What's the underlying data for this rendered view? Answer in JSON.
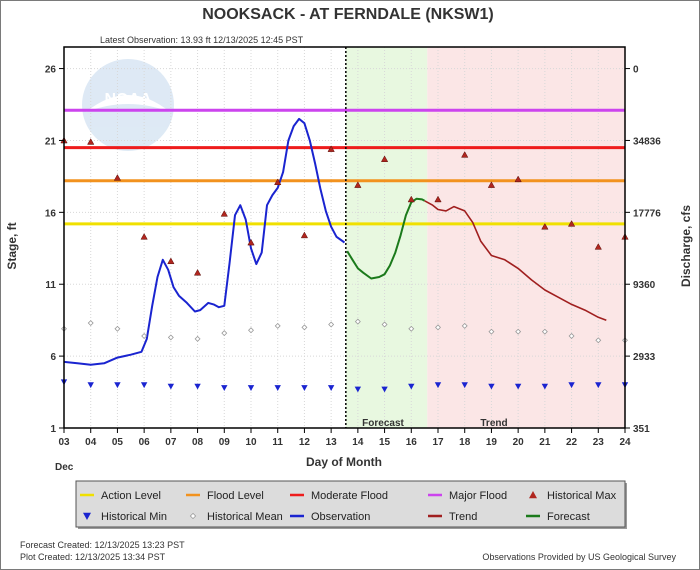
{
  "header": {
    "title": "NOOKSACK - AT FERNDALE  (NKSW1)",
    "latest_observation": "Latest Observation: 13.93 ft 12/13/2025 12:45 PST"
  },
  "watermark": "NOAA",
  "chart_data": {
    "type": "line",
    "x_label": "Day of Month",
    "x_sublabel": "Dec",
    "y_label": "Stage, ft",
    "y2_label": "Discharge, cfs",
    "x_ticks": [
      "03",
      "04",
      "05",
      "06",
      "07",
      "08",
      "09",
      "10",
      "11",
      "12",
      "13",
      "14",
      "15",
      "16",
      "17",
      "18",
      "19",
      "20",
      "21",
      "22",
      "23",
      "24"
    ],
    "x_range": [
      3,
      24
    ],
    "y_ticks": [
      "1",
      "6",
      "11",
      "16",
      "21",
      "26"
    ],
    "y_range": [
      1,
      27.5
    ],
    "y2_ticks": [
      {
        "stage": 1,
        "label": "351"
      },
      {
        "stage": 6,
        "label": "2933"
      },
      {
        "stage": 11,
        "label": "9360"
      },
      {
        "stage": 16,
        "label": "17776"
      },
      {
        "stage": 21,
        "label": "34836"
      },
      {
        "stage": 26,
        "label": "0"
      }
    ],
    "thresholds": [
      {
        "name": "Action Level",
        "stage": 15.2,
        "color": "#f0e000"
      },
      {
        "name": "Flood Level",
        "stage": 18.2,
        "color": "#f2921e"
      },
      {
        "name": "Moderate Flood",
        "stage": 20.5,
        "color": "#ee1c1c"
      },
      {
        "name": "Major Flood",
        "stage": 23.1,
        "color": "#cc44ee"
      }
    ],
    "now_day": 13.55,
    "forecast_zone": {
      "label": "Forecast",
      "start": 13.55,
      "end": 16.6,
      "color": "#e8f8e0"
    },
    "trend_zone": {
      "label": "Trend",
      "start": 16.6,
      "end": 24,
      "color": "#fbe6e6"
    },
    "observation": {
      "name": "Observation",
      "color": "#1a24d0",
      "x": [
        3,
        3.5,
        4,
        4.5,
        5,
        5.5,
        5.9,
        6.1,
        6.3,
        6.5,
        6.7,
        6.9,
        7.1,
        7.3,
        7.6,
        7.9,
        8.1,
        8.4,
        8.6,
        8.8,
        9.0,
        9.2,
        9.4,
        9.6,
        9.8,
        10.0,
        10.2,
        10.4,
        10.6,
        10.8,
        11.0,
        11.2,
        11.4,
        11.6,
        11.8,
        12.0,
        12.2,
        12.4,
        12.6,
        12.8,
        13.0,
        13.2,
        13.5
      ],
      "y": [
        5.6,
        5.5,
        5.4,
        5.5,
        5.9,
        6.1,
        6.3,
        7.2,
        9.5,
        11.5,
        12.7,
        12.0,
        10.8,
        10.2,
        9.7,
        9.1,
        9.2,
        9.7,
        9.6,
        9.4,
        9.5,
        12.5,
        15.8,
        16.5,
        15.5,
        13.5,
        12.4,
        13.2,
        16.5,
        17.2,
        17.7,
        18.8,
        21.0,
        22.0,
        22.5,
        22.2,
        21.0,
        19.4,
        17.6,
        16.1,
        15.0,
        14.3,
        13.9
      ]
    },
    "forecast": {
      "name": "Forecast",
      "color": "#1b7a1b",
      "x": [
        13.6,
        13.8,
        14.0,
        14.2,
        14.5,
        14.8,
        15.0,
        15.2,
        15.4,
        15.6,
        15.8,
        16.0,
        16.2,
        16.4,
        16.5
      ],
      "y": [
        13.3,
        12.7,
        12.1,
        11.8,
        11.4,
        11.5,
        11.7,
        12.3,
        13.2,
        14.4,
        15.8,
        16.7,
        16.95,
        16.9,
        16.8
      ]
    },
    "trend": {
      "name": "Trend",
      "color": "#a01f1f",
      "x": [
        16.5,
        16.8,
        17.0,
        17.3,
        17.6,
        18.0,
        18.3,
        18.6,
        19.0,
        19.5,
        20.0,
        20.5,
        21.0,
        21.5,
        22.0,
        22.5,
        23.0,
        23.3
      ],
      "y": [
        16.8,
        16.5,
        16.2,
        16.1,
        16.4,
        16.1,
        15.3,
        14.0,
        13.0,
        12.7,
        12.1,
        11.3,
        10.6,
        10.1,
        9.6,
        9.2,
        8.7,
        8.5
      ]
    },
    "historical_max": {
      "name": "Historical Max",
      "color": "#b0261f",
      "x": [
        3,
        4,
        5,
        6,
        7,
        8,
        9,
        10,
        11,
        12,
        13,
        14,
        15,
        16,
        17,
        18,
        19,
        20,
        21,
        22,
        23,
        24
      ],
      "y": [
        21.0,
        20.9,
        18.4,
        14.3,
        12.6,
        11.8,
        15.9,
        13.9,
        18.1,
        14.4,
        20.4,
        17.9,
        19.7,
        16.9,
        16.9,
        20.0,
        17.9,
        18.3,
        15.0,
        15.2,
        13.6,
        14.3
      ]
    },
    "historical_mean": {
      "name": "Historical Mean",
      "color": "#999999",
      "x": [
        3,
        4,
        5,
        6,
        7,
        8,
        9,
        10,
        11,
        12,
        13,
        14,
        15,
        16,
        17,
        18,
        19,
        20,
        21,
        22,
        23,
        24
      ],
      "y": [
        7.9,
        8.3,
        7.9,
        7.4,
        7.3,
        7.2,
        7.6,
        7.8,
        8.1,
        8.0,
        8.2,
        8.4,
        8.2,
        7.9,
        8.0,
        8.1,
        7.7,
        7.7,
        7.7,
        7.4,
        7.1,
        7.1
      ]
    },
    "historical_min": {
      "name": "Historical Min",
      "color": "#1a24d0",
      "x": [
        3,
        4,
        5,
        6,
        7,
        8,
        9,
        10,
        11,
        12,
        13,
        14,
        15,
        16,
        17,
        18,
        19,
        20,
        21,
        22,
        23,
        24
      ],
      "y": [
        4.2,
        4.0,
        4.0,
        4.0,
        3.9,
        3.9,
        3.8,
        3.8,
        3.8,
        3.8,
        3.8,
        3.7,
        3.7,
        3.9,
        4.0,
        4.0,
        3.9,
        3.9,
        3.9,
        4.0,
        4.0,
        4.0
      ]
    },
    "legend": [
      {
        "label": "Action Level",
        "kind": "line",
        "color": "#f0e000"
      },
      {
        "label": "Flood Level",
        "kind": "line",
        "color": "#f2921e"
      },
      {
        "label": "Moderate Flood",
        "kind": "line",
        "color": "#ee1c1c"
      },
      {
        "label": "Major Flood",
        "kind": "line",
        "color": "#cc44ee"
      },
      {
        "label": "Historical Max",
        "kind": "triangle-up",
        "color": "#b0261f"
      },
      {
        "label": "Historical Min",
        "kind": "triangle-down",
        "color": "#1a24d0"
      },
      {
        "label": "Historical Mean",
        "kind": "diamond",
        "color": "#999999"
      },
      {
        "label": "Observation",
        "kind": "line",
        "color": "#1a24d0"
      },
      {
        "label": "Trend",
        "kind": "line",
        "color": "#a01f1f"
      },
      {
        "label": "Forecast",
        "kind": "line",
        "color": "#1b7a1b"
      }
    ]
  },
  "footer": {
    "forecast_created": "Forecast Created:  12/13/2025 13:23 PST",
    "plot_created": "Plot Created:  12/13/2025 13:34 PST",
    "credit": "Observations Provided by US Geological Survey"
  }
}
